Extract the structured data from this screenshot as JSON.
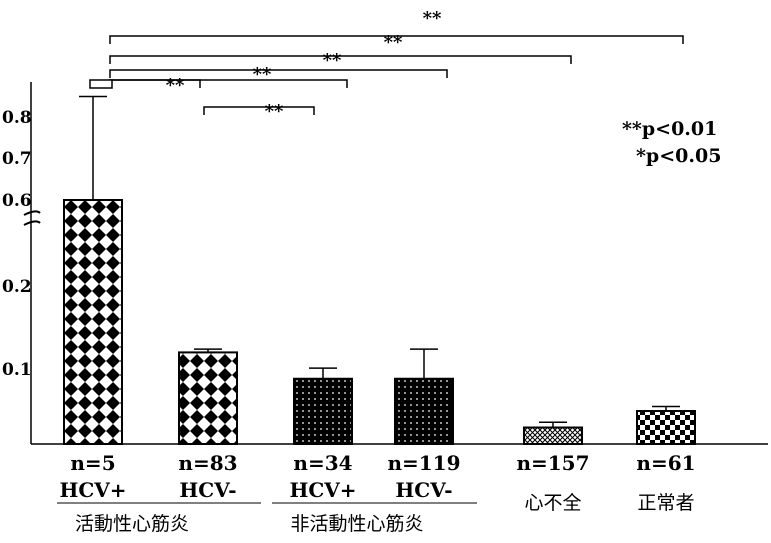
{
  "chart_data": {
    "type": "bar",
    "y_ticks": [
      "0.1",
      "0.2",
      "0.6",
      "0.7",
      "0.8"
    ],
    "axis_break": true,
    "bars": [
      {
        "n_label": "n=5",
        "hcv_label": "HCV+",
        "value": 0.6,
        "error": 0.25,
        "pattern": "diamond"
      },
      {
        "n_label": "n=83",
        "hcv_label": "HCV-",
        "value": 0.12,
        "error": 0.004,
        "pattern": "diamond"
      },
      {
        "n_label": "n=34",
        "hcv_label": "HCV+",
        "value": 0.087,
        "error": 0.014,
        "pattern": "dotted-dark"
      },
      {
        "n_label": "n=119",
        "hcv_label": "HCV-",
        "value": 0.087,
        "error": 0.037,
        "pattern": "dotted-dark"
      },
      {
        "n_label": "n=157",
        "hcv_label": "心不全",
        "value": 0.022,
        "error": 0.007,
        "pattern": "crosshatch"
      },
      {
        "n_label": "n=61",
        "hcv_label": "正常者",
        "value": 0.044,
        "error": 0.006,
        "pattern": "checker"
      }
    ],
    "group_labels": [
      {
        "text": "活動性心筋炎",
        "bars": [
          0,
          1
        ]
      },
      {
        "text": "非活動性心筋炎",
        "bars": [
          2,
          3
        ]
      }
    ],
    "significance_brackets": [
      {
        "from": 0,
        "to": 5,
        "label": "**"
      },
      {
        "from": 0,
        "to": 4,
        "label": "**"
      },
      {
        "from": 0,
        "to": 3,
        "label": "**"
      },
      {
        "from": 0,
        "to": 2,
        "label": "**"
      },
      {
        "from": 0,
        "to": 1,
        "label": "**"
      },
      {
        "from": 1,
        "to": 2,
        "label": "**"
      }
    ],
    "legend": [
      "**p<0.01",
      "*p<0.05"
    ]
  }
}
